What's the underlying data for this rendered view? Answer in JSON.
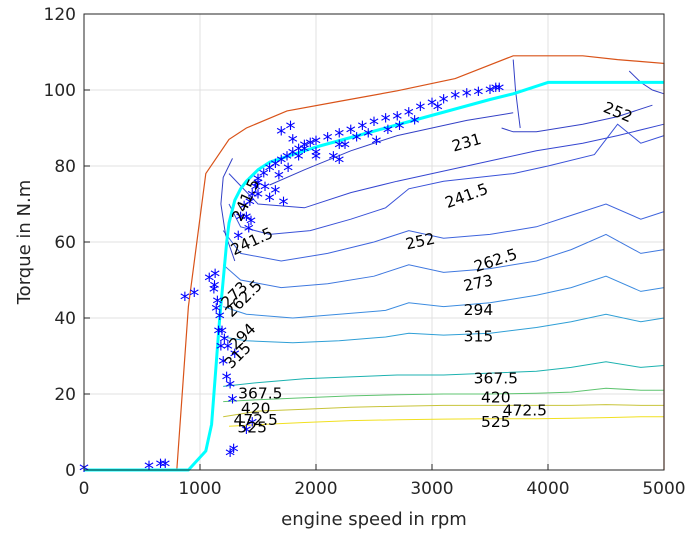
{
  "chart_data": {
    "type": "line",
    "title": "",
    "xlabel": "engine speed in rpm",
    "ylabel": "Torque in N.m",
    "xlim": [
      0,
      5000
    ],
    "ylim": [
      0,
      120
    ],
    "xticks": [
      0,
      1000,
      2000,
      3000,
      4000,
      5000
    ],
    "yticks": [
      0,
      20,
      40,
      60,
      80,
      100,
      120
    ],
    "xtick_labels": [
      "0",
      "1000",
      "2000",
      "3000",
      "4000",
      "5000"
    ],
    "ytick_labels": [
      "0",
      "20",
      "40",
      "60",
      "80",
      "100",
      "120"
    ],
    "grid": true,
    "colors": {
      "max_torque": "#d95319",
      "operating_line": "#00ffff",
      "operating_points": "#0000ff",
      "axes": "#262626",
      "grid": "#e0e0e0"
    },
    "max_torque_curve": {
      "x": [
        800,
        900,
        1050,
        1250,
        1400,
        1750,
        2200,
        2700,
        3200,
        3700,
        4300,
        4600,
        4800,
        5000,
        5000
      ],
      "y": [
        0,
        43,
        78,
        87,
        90,
        94.5,
        97,
        99.8,
        103,
        109,
        109,
        108,
        107.5,
        107,
        0
      ]
    },
    "operating_line": {
      "x": [
        0,
        900,
        1050,
        1100,
        1120,
        1145,
        1170,
        1200,
        1230,
        1250,
        1300,
        1350,
        1400,
        1500,
        1600,
        1800,
        2000,
        2300,
        2600,
        2900,
        3200,
        3500,
        3700,
        4000,
        4500,
        5000
      ],
      "y": [
        0,
        0,
        5,
        12,
        20,
        30,
        40,
        50,
        60,
        65,
        71,
        74,
        76,
        79,
        81,
        83,
        85,
        87.5,
        90,
        92.5,
        95,
        97.5,
        99,
        102,
        102,
        102
      ]
    },
    "operating_points": {
      "x": [
        0,
        560,
        660,
        700,
        870,
        950,
        1080,
        1125,
        1140,
        1160,
        1180,
        1200,
        1230,
        1260,
        1280,
        1330,
        1400,
        1430,
        1450,
        1480,
        1500,
        1550,
        1600,
        1650,
        1700,
        1750,
        1800,
        1850,
        1900,
        1950,
        2000,
        2100,
        2200,
        2300,
        2400,
        2500,
        2600,
        2700,
        2800,
        2900,
        3000,
        3100,
        3200,
        3300,
        3400,
        3500,
        3550,
        3580,
        1700,
        1780,
        1800,
        1420,
        1440,
        1380,
        1500,
        1560,
        1600,
        1650,
        1720,
        1290,
        1260,
        1400,
        1450,
        1120,
        1130,
        1150,
        1170,
        1190,
        1210,
        1240,
        1300,
        1350,
        1500,
        1680,
        1760,
        1850,
        1900,
        2000,
        2150,
        2200,
        2250,
        2350,
        2450,
        2520,
        2620,
        2720,
        2850,
        3050,
        2200,
        2000
      ],
      "y": [
        0,
        0.5,
        1,
        1,
        45,
        46,
        50,
        48,
        42,
        36,
        32,
        28,
        24,
        22,
        18,
        61,
        66,
        70,
        72,
        74,
        76,
        77.5,
        79,
        80,
        81,
        82,
        83,
        84,
        85,
        85.5,
        86,
        87,
        88,
        89,
        90,
        91,
        92,
        92.5,
        93.5,
        95,
        96,
        97,
        98,
        98.5,
        99,
        99.5,
        100,
        100,
        88.5,
        90,
        86.5,
        63,
        65,
        69,
        72,
        74,
        71,
        73,
        70,
        5,
        4,
        10,
        12,
        47,
        51,
        44,
        40,
        36,
        34,
        32,
        30,
        66,
        75,
        77,
        79,
        82,
        84,
        82,
        82,
        81,
        85,
        87,
        88,
        86,
        89,
        90,
        91.5,
        95,
        85,
        83
      ]
    },
    "contours": [
      {
        "level": "231",
        "color": "#3340c6",
        "x": [
          1600,
          1900,
          2300,
          2700,
          3000,
          3300,
          3700
        ],
        "y": [
          75,
          79,
          84,
          88,
          90,
          92,
          94
        ]
      },
      {
        "level": "231",
        "color": "#3340c6",
        "x": [
          3600,
          3700,
          3900,
          4100,
          4300,
          4600,
          4900
        ],
        "y": [
          90,
          89,
          89,
          90,
          91,
          93,
          96
        ]
      },
      {
        "level": "241.5",
        "color": "#3546d1",
        "x": [
          1250,
          1500,
          1900,
          2300,
          2700,
          3000,
          3300,
          3600,
          3900,
          4300,
          4600,
          5000
        ],
        "y": [
          78,
          70,
          69,
          73,
          76,
          78,
          80,
          82,
          84,
          86,
          88,
          91
        ]
      },
      {
        "level": "252",
        "color": "#3a52d8",
        "x": [
          1250,
          1350,
          1600,
          1950,
          2300,
          2600,
          2800,
          3100,
          3400,
          3700,
          4000,
          4400,
          4600,
          4800,
          5000
        ],
        "y": [
          70,
          64,
          62,
          63,
          66,
          69,
          74,
          76,
          77,
          78,
          80,
          83,
          91,
          86,
          88
        ]
      },
      {
        "level": "262.5",
        "color": "#3e64dd",
        "x": [
          1200,
          1350,
          1700,
          2100,
          2500,
          2800,
          3100,
          3500,
          3900,
          4200,
          4500,
          4800,
          5000
        ],
        "y": [
          63,
          57,
          55,
          57,
          60,
          63,
          61,
          62,
          64,
          67,
          70,
          66,
          68
        ]
      },
      {
        "level": "273",
        "color": "#3f78df",
        "x": [
          1200,
          1350,
          1700,
          2100,
          2500,
          2800,
          3100,
          3500,
          3900,
          4200,
          4500,
          4800,
          5000
        ],
        "y": [
          54,
          50,
          48,
          49,
          51,
          54,
          52,
          53,
          55,
          58,
          62,
          57,
          58
        ]
      },
      {
        "level": "294",
        "color": "#3c8ce0",
        "x": [
          1200,
          1400,
          1800,
          2200,
          2600,
          2800,
          3100,
          3500,
          3900,
          4200,
          4500,
          4800,
          5000
        ],
        "y": [
          43,
          41,
          40,
          41,
          42,
          44,
          43,
          44,
          46,
          48,
          51,
          47,
          48
        ]
      },
      {
        "level": "315",
        "color": "#2f9fd6",
        "x": [
          1200,
          1400,
          1800,
          2200,
          2600,
          2800,
          3100,
          3500,
          3900,
          4200,
          4500,
          4800,
          5000
        ],
        "y": [
          35,
          34,
          33.5,
          34,
          35,
          36,
          35.5,
          36,
          37.5,
          39,
          41,
          39,
          40
        ]
      },
      {
        "level": "367.5",
        "color": "#1cb2b0",
        "x": [
          1200,
          1500,
          1900,
          2300,
          2700,
          3100,
          3500,
          3900,
          4200,
          4500,
          4800,
          5000
        ],
        "y": [
          22,
          23,
          24,
          24.5,
          25,
          25,
          25.5,
          26,
          27,
          28.5,
          27,
          27.5
        ]
      },
      {
        "level": "420",
        "color": "#5fc470",
        "x": [
          1200,
          1500,
          1900,
          2300,
          2700,
          3100,
          3500,
          3900,
          4200,
          4500,
          4800,
          5000
        ],
        "y": [
          18,
          18.5,
          19,
          19.5,
          19.8,
          20,
          20,
          20.2,
          20.5,
          21.5,
          21,
          21
        ]
      },
      {
        "level": "472.5",
        "color": "#c8c43a",
        "x": [
          1200,
          1500,
          1900,
          2300,
          2700,
          3100,
          3500,
          3900,
          4200,
          4500,
          4800,
          5000
        ],
        "y": [
          14,
          15.5,
          16,
          16.5,
          16.8,
          17,
          17,
          17,
          17,
          17.2,
          17,
          17
        ]
      },
      {
        "level": "525",
        "color": "#f1e020",
        "x": [
          1250,
          1550,
          1900,
          2300,
          2700,
          3100,
          3500,
          3900,
          4200,
          4500,
          4800,
          5000
        ],
        "y": [
          11.5,
          12,
          12.5,
          13,
          13.2,
          13.4,
          13.5,
          13.5,
          13.6,
          13.8,
          14,
          14
        ]
      },
      {
        "level": "",
        "color": "#3340c6",
        "x": [
          3700,
          3720,
          3740,
          3760
        ],
        "y": [
          108,
          100,
          95,
          90
        ]
      },
      {
        "level": "",
        "color": "#3340c6",
        "x": [
          4700,
          4800,
          4900,
          5000
        ],
        "y": [
          105,
          102,
          100,
          99
        ]
      },
      {
        "level": "",
        "color": "#3340c6",
        "x": [
          1280,
          1200,
          1180,
          1220,
          1300
        ],
        "y": [
          82,
          77,
          70,
          62,
          55
        ]
      }
    ],
    "contour_labels": [
      {
        "text": "231",
        "x": 3300,
        "y": 86,
        "angle": -16
      },
      {
        "text": "241.5",
        "x": 3300,
        "y": 72,
        "angle": -20
      },
      {
        "text": "252",
        "x": 2900,
        "y": 60,
        "angle": -12
      },
      {
        "text": "252",
        "x": 4600,
        "y": 94,
        "angle": 22
      },
      {
        "text": "262.5",
        "x": 3550,
        "y": 55,
        "angle": -18
      },
      {
        "text": "273",
        "x": 3400,
        "y": 49,
        "angle": -12
      },
      {
        "text": "294",
        "x": 3400,
        "y": 42,
        "angle": 0
      },
      {
        "text": "315",
        "x": 3400,
        "y": 35,
        "angle": 0
      },
      {
        "text": "367.5",
        "x": 3550,
        "y": 24,
        "angle": 0
      },
      {
        "text": "420",
        "x": 3550,
        "y": 19,
        "angle": 0
      },
      {
        "text": "472.5",
        "x": 3800,
        "y": 15.5,
        "angle": 0
      },
      {
        "text": "525",
        "x": 3550,
        "y": 12.5,
        "angle": 0
      },
      {
        "text": "241.5",
        "x": 1400,
        "y": 71,
        "angle": -65
      },
      {
        "text": "241.5",
        "x": 1450,
        "y": 60,
        "angle": -25
      },
      {
        "text": "262.5",
        "x": 1380,
        "y": 45,
        "angle": -45
      },
      {
        "text": "273",
        "x": 1300,
        "y": 46,
        "angle": -45
      },
      {
        "text": "294",
        "x": 1370,
        "y": 35,
        "angle": -45
      },
      {
        "text": "315",
        "x": 1330,
        "y": 30,
        "angle": -45
      },
      {
        "text": "367.5",
        "x": 1520,
        "y": 20,
        "angle": 0
      },
      {
        "text": "420",
        "x": 1480,
        "y": 16,
        "angle": 0
      },
      {
        "text": "472.5",
        "x": 1480,
        "y": 13,
        "angle": 0
      },
      {
        "text": "525",
        "x": 1450,
        "y": 11,
        "angle": 0
      }
    ]
  }
}
